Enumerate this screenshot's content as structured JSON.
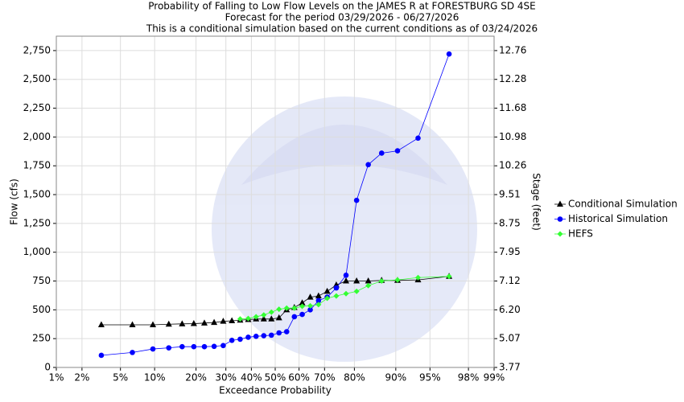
{
  "chart_data": {
    "type": "scatter",
    "title": "Probability of Falling to Low Flow Levels on the JAMES R at FORESTBURG SD 4SE",
    "subtitle": "Forecast for the period 03/29/2026 - 06/27/2026",
    "subtitle2": "This is a conditional simulation based on the current conditions as of 03/24/2026",
    "xlabel": "Exceedance Probability",
    "ylabel": "Flow (cfs)",
    "y2label": "Stage (feet)",
    "xscale": "probability",
    "grid": true,
    "legend": "right",
    "xlim": [
      1,
      99
    ],
    "xticks": [
      {
        "value": 1,
        "label": "1%"
      },
      {
        "value": 2,
        "label": "2%"
      },
      {
        "value": 5,
        "label": "5%"
      },
      {
        "value": 10,
        "label": "10%"
      },
      {
        "value": 20,
        "label": "20%"
      },
      {
        "value": 30,
        "label": "30%"
      },
      {
        "value": 40,
        "label": "40%"
      },
      {
        "value": 50,
        "label": "50%"
      },
      {
        "value": 60,
        "label": "60%"
      },
      {
        "value": 70,
        "label": "70%"
      },
      {
        "value": 80,
        "label": "80%"
      },
      {
        "value": 90,
        "label": "90%"
      },
      {
        "value": 95,
        "label": "95%"
      },
      {
        "value": 98,
        "label": "98%"
      },
      {
        "value": 99,
        "label": "99%"
      }
    ],
    "ylim": [
      0,
      2875
    ],
    "yticks": [
      0,
      250,
      500,
      750,
      {
        "value": 1000,
        "label": "1,000"
      },
      {
        "value": 1250,
        "label": "1,250"
      },
      {
        "value": 1500,
        "label": "1,500"
      },
      {
        "value": 1750,
        "label": "1,750"
      },
      {
        "value": 2000,
        "label": "2,000"
      },
      {
        "value": 2250,
        "label": "2,250"
      },
      {
        "value": 2500,
        "label": "2,500"
      },
      {
        "value": 2750,
        "label": "2,750"
      }
    ],
    "y2ticks": [
      3.77,
      5.07,
      {
        "value": 6.2,
        "label": "6.20"
      },
      7.12,
      7.95,
      8.75,
      9.51,
      10.26,
      10.98,
      11.68,
      12.28,
      12.76
    ],
    "series": [
      {
        "name": "Conditional Simulation",
        "color": "#000000",
        "marker": "triangle",
        "x": [
          3.23,
          6.45,
          9.68,
          12.9,
          16.13,
          19.35,
          22.58,
          25.81,
          29.03,
          32.26,
          35.48,
          38.71,
          41.94,
          45.16,
          48.39,
          51.61,
          54.84,
          58.06,
          61.29,
          64.52,
          67.74,
          70.97,
          74.19,
          77.42,
          80.65,
          83.87,
          87.1,
          90.32,
          93.55,
          96.77
        ],
        "values": [
          370,
          370,
          370,
          375,
          378,
          380,
          385,
          390,
          400,
          405,
          410,
          415,
          420,
          420,
          420,
          430,
          500,
          520,
          560,
          610,
          620,
          660,
          715,
          750,
          750,
          750,
          755,
          755,
          760,
          790
        ]
      },
      {
        "name": "Historical Simulation",
        "color": "#0000ff",
        "marker": "circle",
        "x": [
          3.23,
          6.45,
          9.68,
          12.9,
          16.13,
          19.35,
          22.58,
          25.81,
          29.03,
          32.26,
          35.48,
          38.71,
          41.94,
          45.16,
          48.39,
          51.61,
          54.84,
          58.06,
          61.29,
          64.52,
          67.74,
          70.97,
          74.19,
          77.42,
          80.65,
          83.87,
          87.1,
          90.32,
          93.55,
          96.77
        ],
        "values": [
          105,
          130,
          160,
          170,
          180,
          180,
          180,
          183,
          190,
          235,
          245,
          262,
          270,
          275,
          280,
          300,
          310,
          440,
          460,
          500,
          580,
          610,
          690,
          800,
          1450,
          1760,
          1860,
          1880,
          1990,
          2720
        ]
      },
      {
        "name": "HEFS",
        "color": "#33ff33",
        "marker": "diamond",
        "x": [
          35.48,
          38.71,
          41.94,
          45.16,
          48.39,
          51.61,
          54.84,
          58.06,
          61.29,
          64.52,
          67.74,
          70.97,
          74.19,
          77.42,
          80.65,
          83.87,
          87.1,
          90.32,
          93.55,
          96.77
        ],
        "values": [
          420,
          425,
          440,
          455,
          480,
          505,
          515,
          515,
          530,
          535,
          545,
          600,
          620,
          640,
          660,
          710,
          750,
          760,
          780,
          790
        ]
      }
    ]
  }
}
